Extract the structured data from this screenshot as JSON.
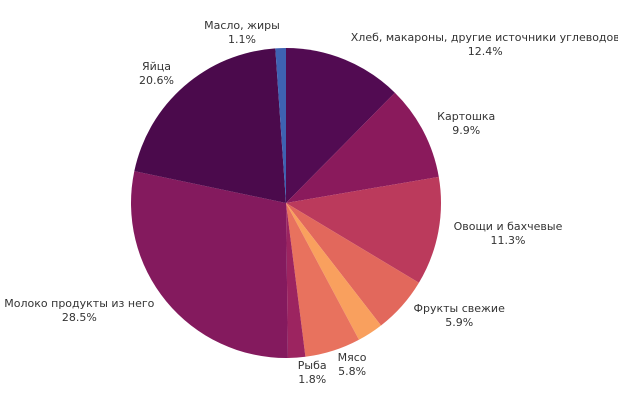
{
  "chart_data": {
    "type": "pie",
    "categories": [
      "Хлеб, макароны, другие источники углеводов",
      "Картошка",
      "Овощи и бахчевые",
      "Фрукты свежие",
      null,
      "Мясо",
      "Рыба",
      "Молоко продукты из него",
      "Яйца",
      "Масло, жиры"
    ],
    "values": [
      12.4,
      9.9,
      11.3,
      5.9,
      2.7,
      5.8,
      1.8,
      28.5,
      20.6,
      1.1
    ],
    "value_labels": [
      "12.4%",
      "9.9%",
      "11.3%",
      "5.9%",
      null,
      "5.8%",
      "1.8%",
      "28.5%",
      "20.6%",
      "1.1%"
    ],
    "colors": [
      "#520b52",
      "#8a1a5c",
      "#bb3a5c",
      "#e2685c",
      "#f9a05e",
      "#e8725e",
      "#9c2460",
      "#841a5e",
      "#4b0a4c",
      "#3e62b2"
    ]
  }
}
